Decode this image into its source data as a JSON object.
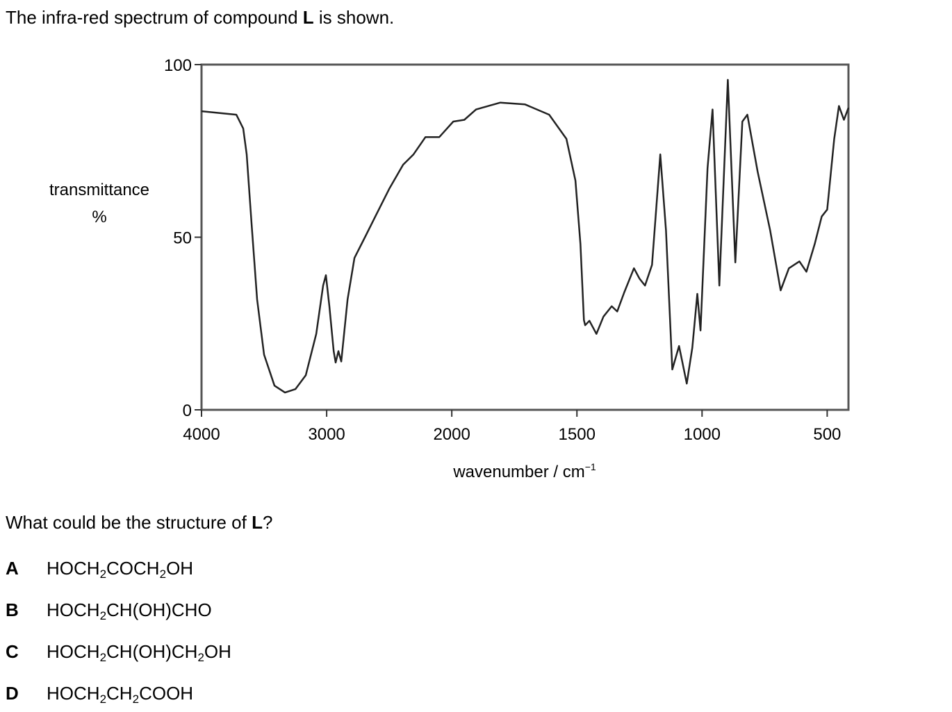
{
  "intro": [
    "The infra-red spectrum of compound ",
    "L",
    " is shown."
  ],
  "chart_data": {
    "type": "line",
    "x_label": [
      "wavenumber / cm",
      "−1"
    ],
    "y_label": [
      "transmittance",
      "%"
    ],
    "x_scale": "piecewise",
    "xlim": [
      4000,
      415
    ],
    "ylim": [
      0,
      100
    ],
    "xticks": [
      4000,
      3000,
      2000,
      1500,
      1000,
      500
    ],
    "yticks": [
      0,
      50,
      100
    ],
    "color": "#222222",
    "x": [
      4000,
      3722,
      3667,
      3639,
      3600,
      3556,
      3500,
      3417,
      3333,
      3250,
      3167,
      3083,
      3028,
      3006,
      2978,
      2944,
      2928,
      2906,
      2883,
      2833,
      2778,
      2694,
      2611,
      2500,
      2389,
      2306,
      2211,
      2100,
      1994,
      1950,
      1903,
      1806,
      1708,
      1611,
      1542,
      1506,
      1486,
      1472,
      1467,
      1450,
      1422,
      1394,
      1361,
      1339,
      1311,
      1272,
      1250,
      1228,
      1200,
      1167,
      1144,
      1119,
      1092,
      1061,
      1039,
      1019,
      1006,
      978,
      958,
      931,
      897,
      867,
      839,
      819,
      778,
      728,
      686,
      653,
      611,
      583,
      550,
      522,
      500,
      472,
      453,
      433,
      415
    ],
    "values": [
      86.5,
      85.5,
      81.5,
      74,
      54,
      32,
      16,
      7,
      5,
      6,
      10,
      22,
      36,
      39,
      30,
      17,
      13.7,
      17,
      14,
      32,
      44,
      50,
      56,
      64,
      71,
      74,
      79,
      79,
      83.5,
      84,
      87,
      89,
      88.5,
      85.5,
      78.5,
      66.4,
      48,
      26,
      24.5,
      25.8,
      22,
      27,
      30,
      28.5,
      34,
      41,
      38,
      36,
      42,
      74,
      52,
      11.7,
      18.5,
      7.6,
      18,
      33.6,
      23,
      70,
      87,
      36,
      95.6,
      42.7,
      83.5,
      85.5,
      69,
      52,
      34.6,
      41,
      43,
      40,
      48,
      56,
      58,
      78.5,
      88,
      84,
      87.5
    ]
  },
  "question": [
    "What could be the structure of ",
    "L",
    "?"
  ],
  "options": [
    {
      "letter": "A",
      "formula": [
        "HOCH",
        "2",
        "COCH",
        "2",
        "OH"
      ]
    },
    {
      "letter": "B",
      "formula": [
        "HOCH",
        "2",
        "CH(OH)CHO"
      ]
    },
    {
      "letter": "C",
      "formula": [
        "HOCH",
        "2",
        "CH(OH)CH",
        "2",
        "OH"
      ]
    },
    {
      "letter": "D",
      "formula": [
        "HOCH",
        "2",
        "CH",
        "2",
        "COOH"
      ]
    }
  ]
}
